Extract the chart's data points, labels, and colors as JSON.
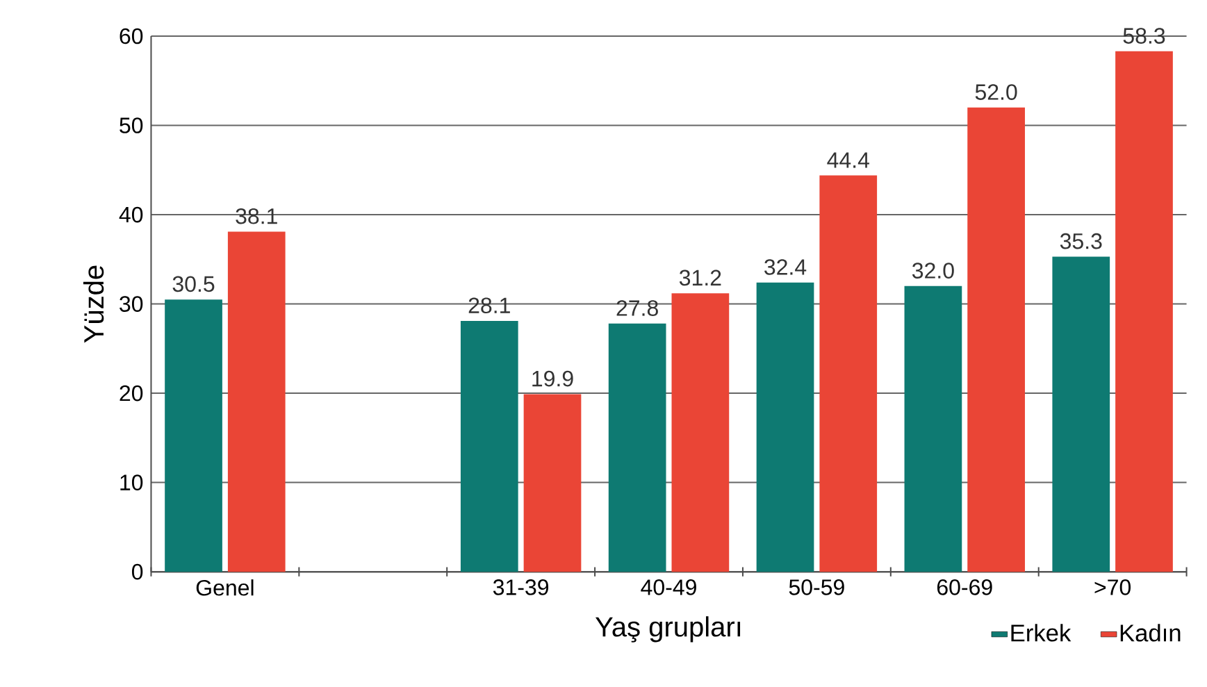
{
  "chart_data": {
    "type": "bar",
    "xlabel": "Yaş grupları",
    "ylabel": "Yüzde",
    "categories": [
      "Genel",
      null,
      "31-39",
      "40-49",
      "50-59",
      "60-69",
      ">70"
    ],
    "series": [
      {
        "name": "Erkek",
        "color": "#0e7a72",
        "values": [
          30.5,
          null,
          28.1,
          27.8,
          32.4,
          32.0,
          35.3
        ],
        "value_labels": [
          "30.5",
          null,
          "28.1",
          "27.8",
          "32.4",
          "32.0",
          "35.3"
        ]
      },
      {
        "name": "Kadın",
        "color": "#ea4536",
        "values": [
          38.1,
          null,
          19.9,
          31.2,
          44.4,
          52.0,
          58.3
        ],
        "value_labels": [
          "38.1",
          null,
          "19.9",
          "31.2",
          "44.4",
          "52.0",
          "58.3"
        ]
      }
    ],
    "ylim": [
      0,
      60
    ],
    "yticks": [
      0,
      10,
      20,
      30,
      40,
      50,
      60
    ],
    "grid": "y",
    "legend": "bottom right"
  }
}
